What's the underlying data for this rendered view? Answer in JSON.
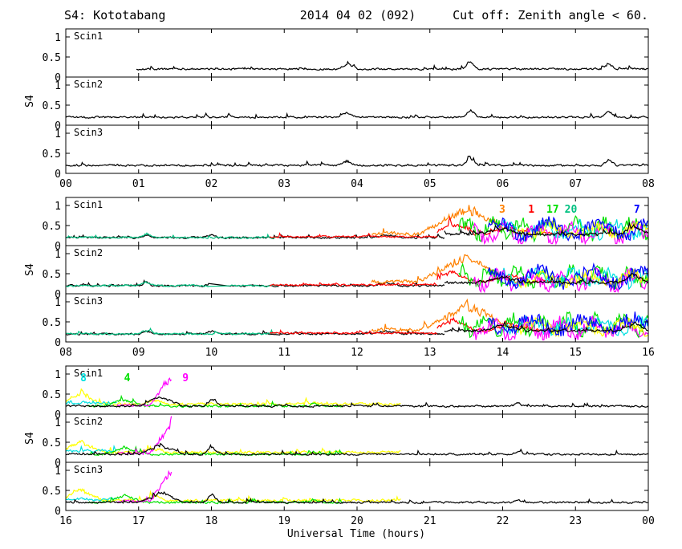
{
  "header": {
    "left": "S4: Kototabang",
    "center": "2014 04 02 (092)",
    "right": "Cut off: Zenith angle < 60."
  },
  "chart_data": {
    "type": "line",
    "ylabel": "S4",
    "xlabel": "Universal Time (hours)",
    "ylim": [
      0,
      1.2
    ],
    "y_ticks": [
      "0",
      "0.5",
      "1"
    ],
    "grid": false,
    "colors": {
      "black": "#000000",
      "orange": "#ff8000",
      "red": "#ff0000",
      "green": "#00e000",
      "cyan": "#00e0e0",
      "teal": "#00c080",
      "magenta": "#ff00ff",
      "blue": "#0000ff",
      "yellow": "#ffff00"
    },
    "rows": [
      {
        "x_ticks": [
          "00",
          "01",
          "02",
          "03",
          "04",
          "05",
          "06",
          "07",
          "08"
        ],
        "start_hour": 0,
        "panels": [
          {
            "label": "Scin1"
          },
          {
            "label": "Scin2"
          },
          {
            "label": "Scin3"
          }
        ],
        "prn_labels": []
      },
      {
        "x_ticks": [
          "08",
          "09",
          "10",
          "11",
          "12",
          "13",
          "14",
          "15",
          "16"
        ],
        "start_hour": 8,
        "panels": [
          {
            "label": "Scin1"
          },
          {
            "label": "Scin2"
          },
          {
            "label": "Scin3"
          }
        ],
        "prn_labels": [
          {
            "text": "3",
            "color": "orange",
            "hour": 13.95
          },
          {
            "text": "1",
            "color": "red",
            "hour": 14.35
          },
          {
            "text": "17",
            "color": "green",
            "hour": 14.6
          },
          {
            "text": "20",
            "color": "teal",
            "hour": 14.85
          },
          {
            "text": "7",
            "color": "blue",
            "hour": 15.8
          }
        ]
      },
      {
        "x_ticks": [
          "16",
          "17",
          "18",
          "19",
          "20",
          "21",
          "22",
          "23",
          "00"
        ],
        "start_hour": 16,
        "panels": [
          {
            "label": "Scin1"
          },
          {
            "label": "Scin2"
          },
          {
            "label": "Scin3"
          }
        ],
        "prn_labels": [
          {
            "text": "8",
            "color": "cyan",
            "hour": 16.2
          },
          {
            "text": "4",
            "color": "green",
            "hour": 16.8
          },
          {
            "text": "9",
            "color": "magenta",
            "hour": 17.6
          }
        ]
      }
    ]
  }
}
